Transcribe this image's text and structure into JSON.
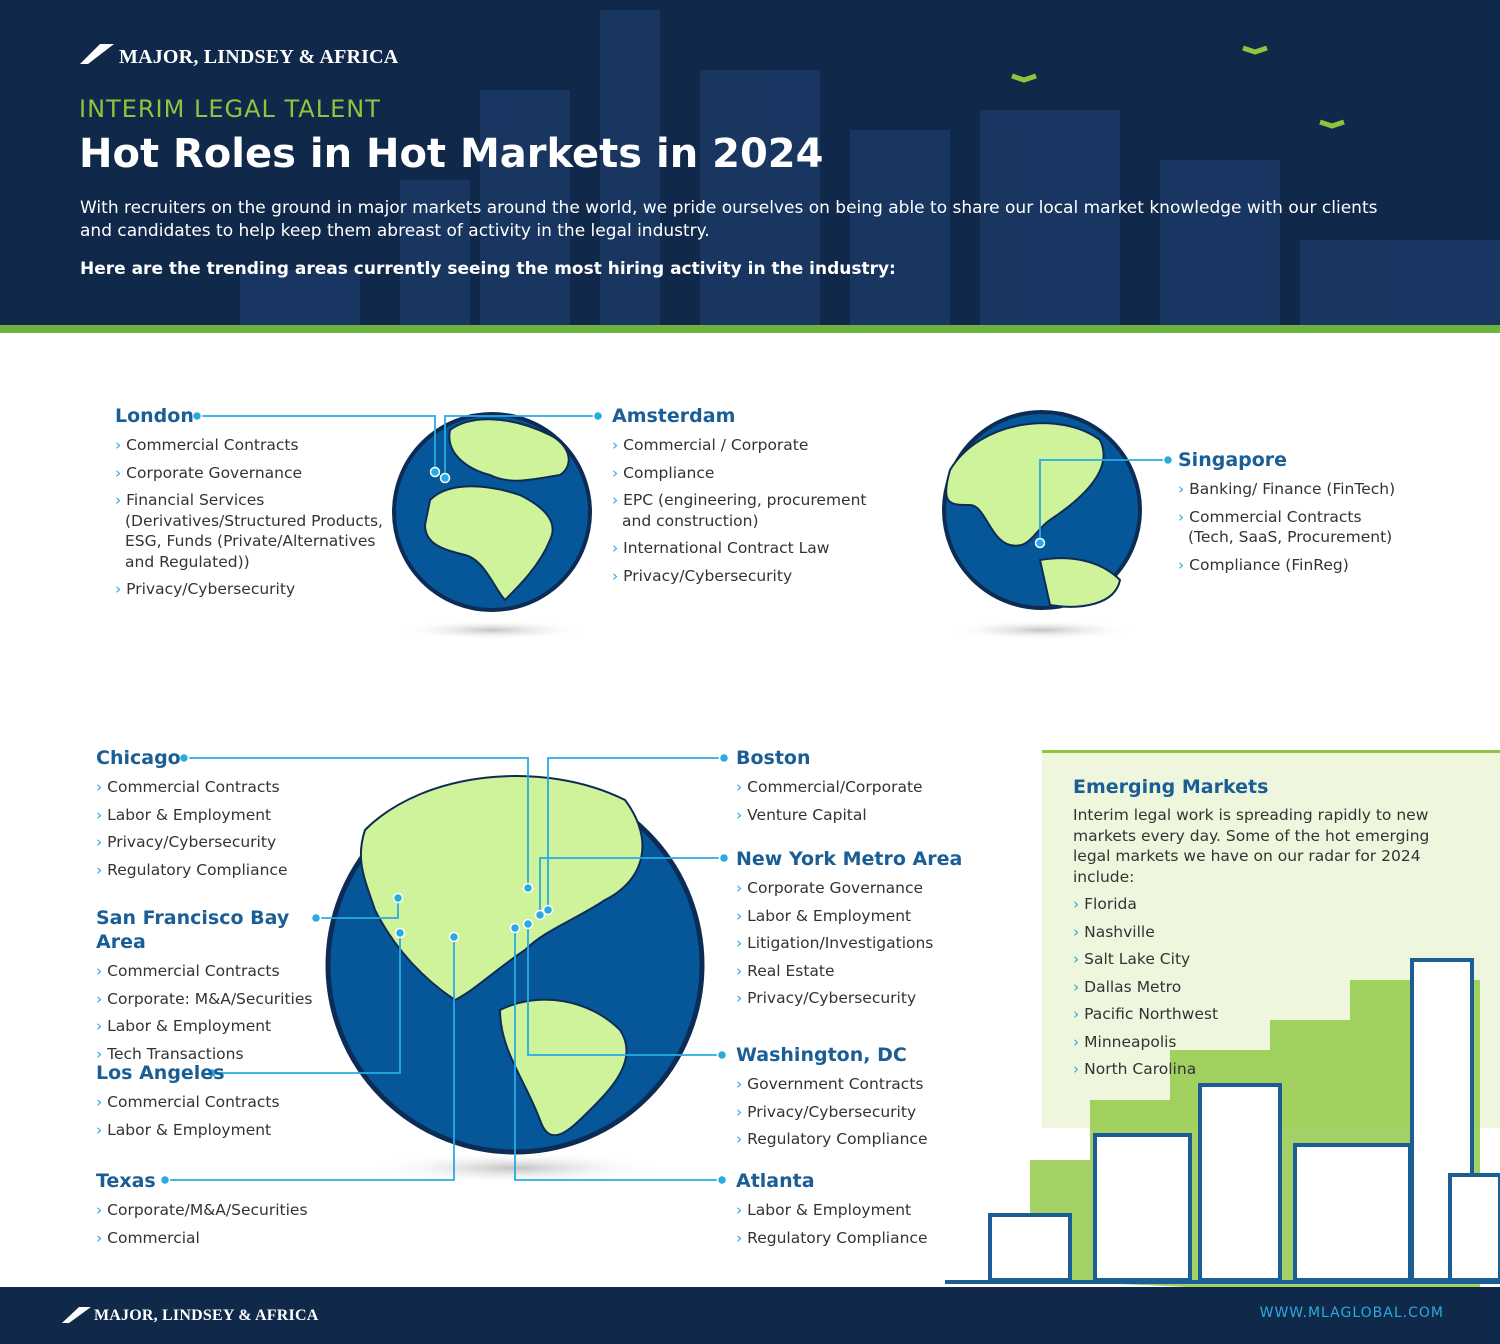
{
  "header": {
    "brand": "MAJOR, LINDSEY & AFRICA",
    "kicker": "INTERIM LEGAL TALENT",
    "title": "Hot Roles in Hot Markets in 2024",
    "intro": "With recruiters on the ground in major markets around the world, we pride ourselves on being able to share our local market knowledge with our clients and candidates to help keep them abreast of activity in the legal industry.",
    "lead": "Here are the trending areas currently seeing the most hiring activity in the industry:"
  },
  "markets": [
    {
      "name": "London",
      "roles": [
        "Commercial Contracts",
        "Corporate Governance",
        "Financial Services (Derivatives/Structured Products, ESG, Funds (Private/Alternatives and Regulated))",
        "Privacy/Cybersecurity"
      ]
    },
    {
      "name": "Amsterdam",
      "roles": [
        "Commercial / Corporate",
        "Compliance",
        "EPC (engineering, procurement and construction)",
        "International Contract Law",
        "Privacy/Cybersecurity"
      ]
    },
    {
      "name": "Singapore",
      "roles": [
        "Banking/ Finance (FinTech)",
        "Commercial Contracts (Tech, SaaS, Procurement)",
        "Compliance (FinReg)"
      ]
    },
    {
      "name": "Chicago",
      "roles": [
        "Commercial Contracts",
        "Labor & Employment",
        "Privacy/Cybersecurity",
        "Regulatory Compliance"
      ]
    },
    {
      "name": "San Francisco Bay Area",
      "roles": [
        "Commercial Contracts",
        "Corporate: M&A/Securities",
        "Labor & Employment",
        "Tech Transactions"
      ]
    },
    {
      "name": "Los Angeles",
      "roles": [
        "Commercial Contracts",
        "Labor & Employment"
      ]
    },
    {
      "name": "Texas",
      "roles": [
        "Corporate/M&A/Securities",
        "Commercial"
      ]
    },
    {
      "name": "Boston",
      "roles": [
        "Commercial/Corporate",
        "Venture Capital"
      ]
    },
    {
      "name": "New York Metro Area",
      "roles": [
        "Corporate Governance",
        "Labor & Employment",
        "Litigation/Investigations",
        "Real Estate",
        "Privacy/Cybersecurity"
      ]
    },
    {
      "name": "Washington, DC",
      "roles": [
        "Government Contracts",
        "Privacy/Cybersecurity",
        "Regulatory Compliance"
      ]
    },
    {
      "name": "Atlanta",
      "roles": [
        "Labor & Employment",
        "Regulatory Compliance"
      ]
    }
  ],
  "emerging": {
    "title": "Emerging Markets",
    "text": "Interim legal work is spreading rapidly to new markets every day. Some of the hot emerging legal markets we have on our radar for 2024 include:",
    "items": [
      "Florida",
      "Nashville",
      "Salt Lake City",
      "Dallas Metro",
      "Pacific Northwest",
      "Minneapolis",
      "North Carolina"
    ]
  },
  "footer": {
    "brand": "MAJOR, LINDSEY & AFRICA",
    "url": "WWW.MLAGLOBAL.COM"
  }
}
